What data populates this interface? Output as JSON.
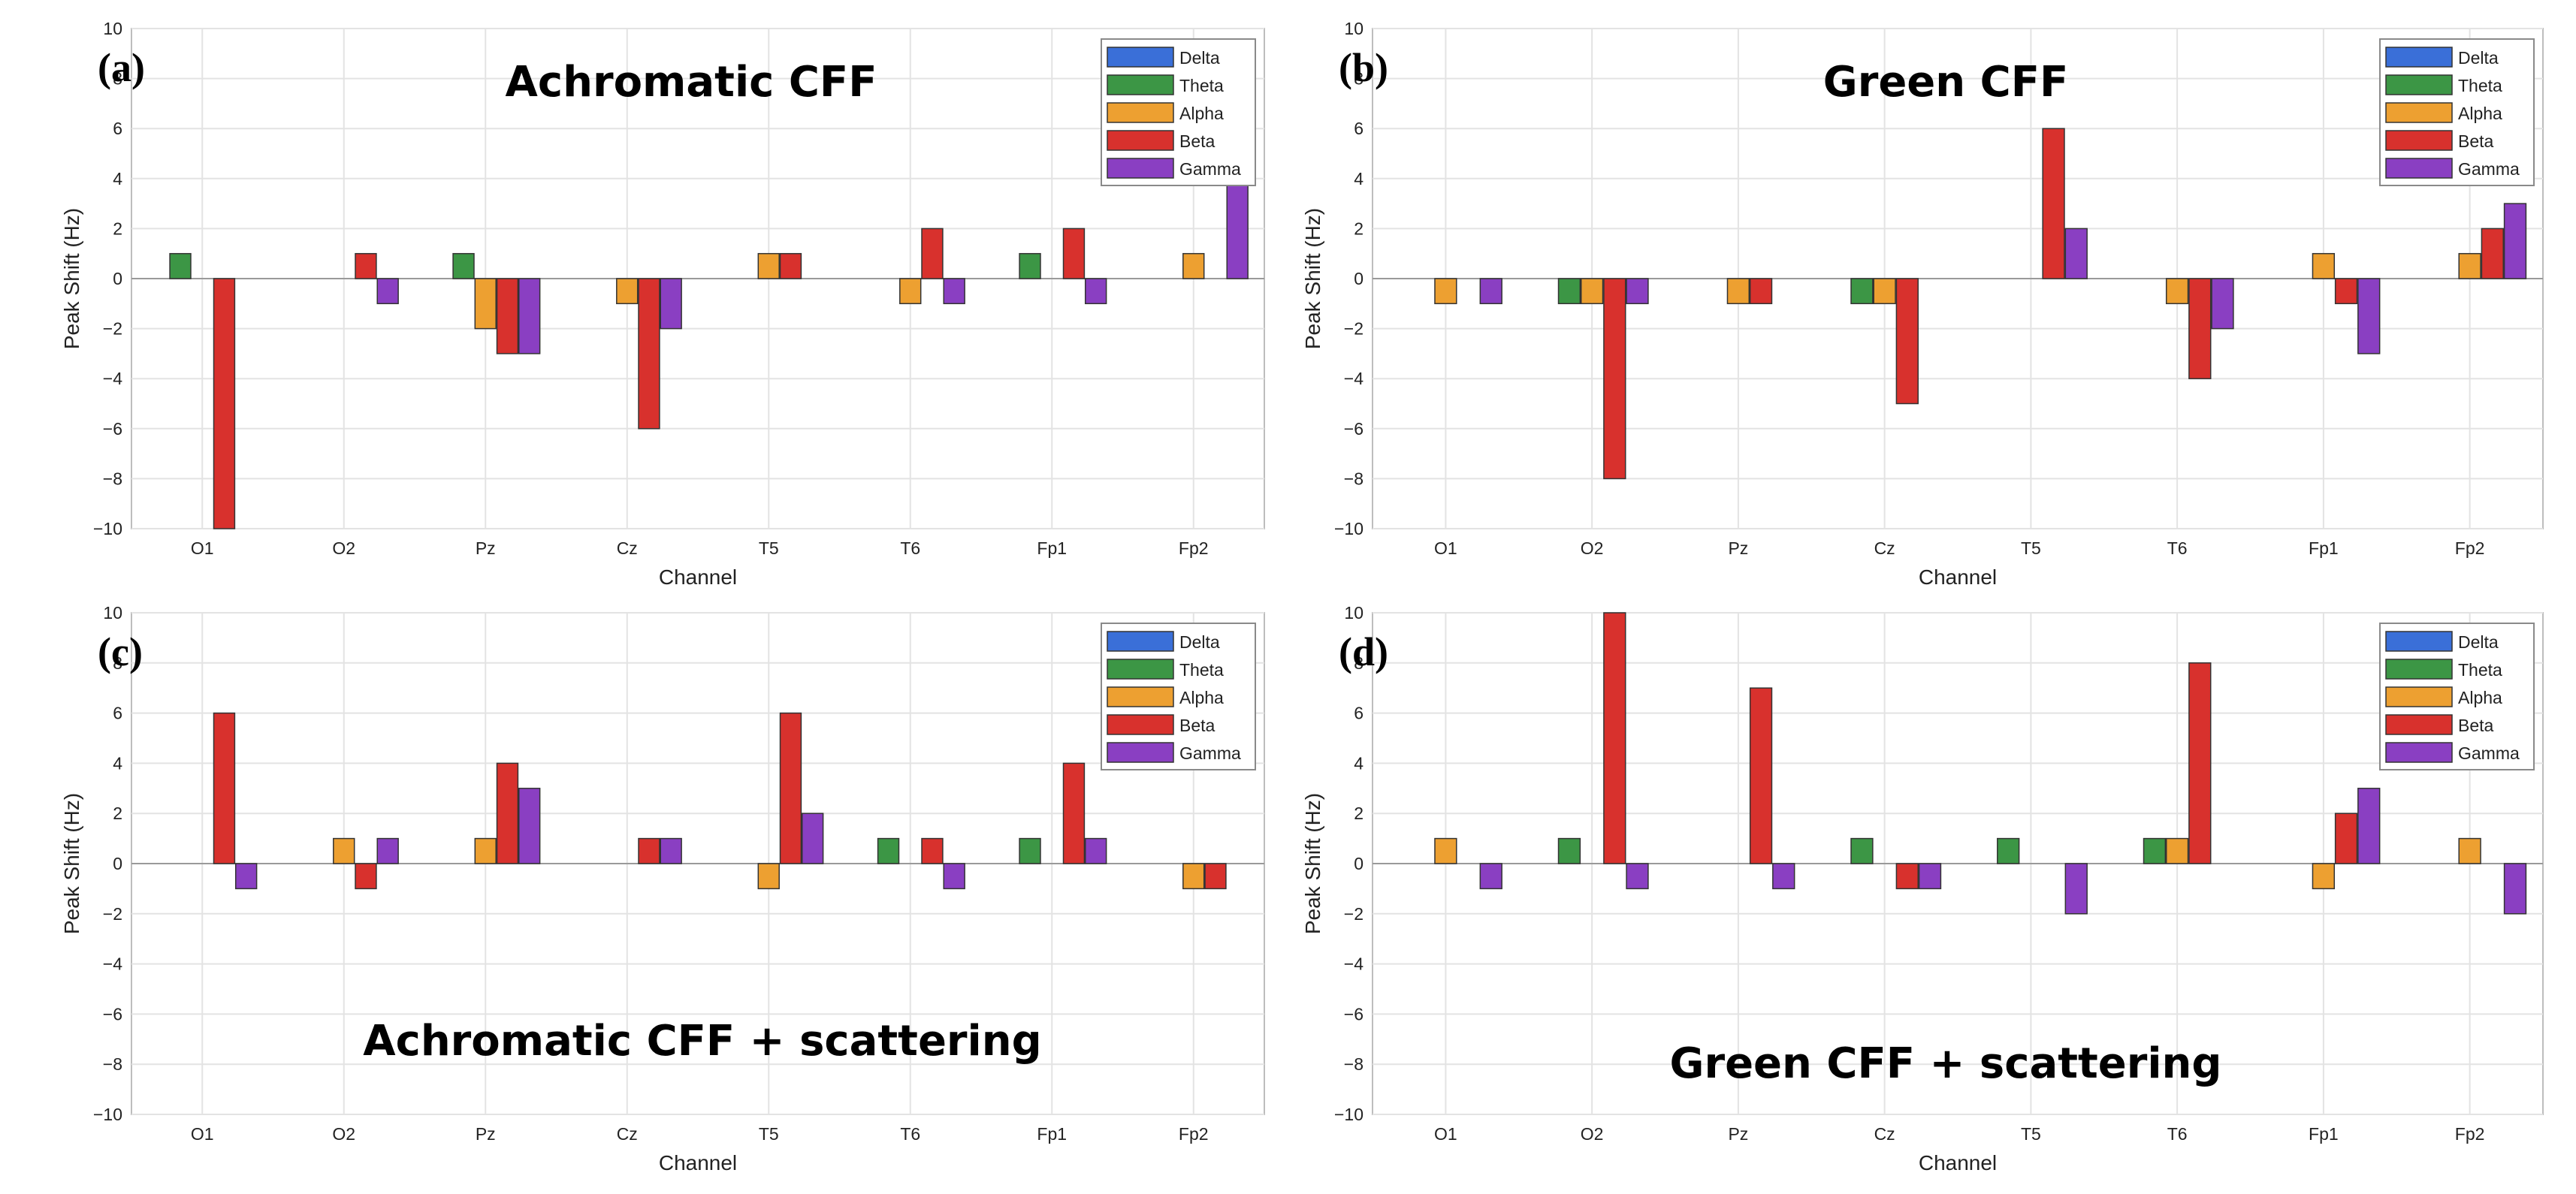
{
  "figure": {
    "legend": {
      "entries": [
        "Delta",
        "Theta",
        "Alpha",
        "Beta",
        "Gamma"
      ],
      "colors": [
        "#3a6fd8",
        "#3c9645",
        "#eda031",
        "#d8312d",
        "#8a3fc2"
      ]
    }
  },
  "chart_data": [
    {
      "type": "bar",
      "panel": "(a)",
      "title": "Achromatic CFF",
      "xlabel": "Channel",
      "ylabel": "Peak Shift (Hz)",
      "ylim": [
        -10,
        10
      ],
      "yticks": [
        10,
        8,
        6,
        4,
        2,
        0,
        -2,
        -4,
        -6,
        -8,
        -10
      ],
      "grid": true,
      "legend_position": "top-right",
      "categories": [
        "O1",
        "O2",
        "Pz",
        "Cz",
        "T5",
        "T6",
        "Fp1",
        "Fp2"
      ],
      "series": [
        {
          "name": "Delta",
          "values": [
            0,
            0,
            0,
            0,
            0,
            0,
            0,
            0
          ]
        },
        {
          "name": "Theta",
          "values": [
            1,
            0,
            1,
            0,
            0,
            0,
            1,
            0
          ]
        },
        {
          "name": "Alpha",
          "values": [
            0,
            0,
            -2,
            -1,
            1,
            -1,
            0,
            1
          ]
        },
        {
          "name": "Beta",
          "values": [
            -10,
            1,
            -3,
            -6,
            1,
            2,
            2,
            0
          ]
        },
        {
          "name": "Gamma",
          "values": [
            0,
            -1,
            -3,
            -2,
            0,
            -1,
            -1,
            4
          ]
        }
      ]
    },
    {
      "type": "bar",
      "panel": "(b)",
      "title": "Green CFF",
      "xlabel": "Channel",
      "ylabel": "Peak Shift (Hz)",
      "ylim": [
        -10,
        10
      ],
      "yticks": [
        10,
        8,
        6,
        4,
        2,
        0,
        -2,
        -4,
        -6,
        -8,
        -10
      ],
      "grid": true,
      "legend_position": "top-right",
      "categories": [
        "O1",
        "O2",
        "Pz",
        "Cz",
        "T5",
        "T6",
        "Fp1",
        "Fp2"
      ],
      "series": [
        {
          "name": "Delta",
          "values": [
            0,
            0,
            0,
            0,
            0,
            0,
            0,
            0
          ]
        },
        {
          "name": "Theta",
          "values": [
            0,
            -1,
            0,
            -1,
            0,
            0,
            0,
            0
          ]
        },
        {
          "name": "Alpha",
          "values": [
            -1,
            -1,
            -1,
            -1,
            0,
            -1,
            1,
            1
          ]
        },
        {
          "name": "Beta",
          "values": [
            0,
            -8,
            -1,
            -5,
            6,
            -4,
            -1,
            2
          ]
        },
        {
          "name": "Gamma",
          "values": [
            -1,
            -1,
            0,
            0,
            2,
            -2,
            -3,
            3
          ]
        }
      ]
    },
    {
      "type": "bar",
      "panel": "(c)",
      "title": "Achromatic CFF + scattering",
      "xlabel": "Channel",
      "ylabel": "Peak Shift (Hz)",
      "ylim": [
        -10,
        10
      ],
      "yticks": [
        10,
        8,
        6,
        4,
        2,
        0,
        -2,
        -4,
        -6,
        -8,
        -10
      ],
      "grid": true,
      "legend_position": "top-right",
      "categories": [
        "O1",
        "O2",
        "Pz",
        "Cz",
        "T5",
        "T6",
        "Fp1",
        "Fp2"
      ],
      "series": [
        {
          "name": "Delta",
          "values": [
            0,
            0,
            0,
            0,
            0,
            0,
            0,
            0
          ]
        },
        {
          "name": "Theta",
          "values": [
            0,
            0,
            0,
            0,
            0,
            1,
            1,
            0
          ]
        },
        {
          "name": "Alpha",
          "values": [
            0,
            1,
            1,
            0,
            -1,
            0,
            0,
            -1
          ]
        },
        {
          "name": "Beta",
          "values": [
            6,
            -1,
            4,
            1,
            6,
            1,
            4,
            -1
          ]
        },
        {
          "name": "Gamma",
          "values": [
            -1,
            1,
            3,
            1,
            2,
            -1,
            1,
            0
          ]
        }
      ]
    },
    {
      "type": "bar",
      "panel": "(d)",
      "title": "Green CFF + scattering",
      "xlabel": "Channel",
      "ylabel": "Peak Shift (Hz)",
      "ylim": [
        -10,
        10
      ],
      "yticks": [
        10,
        8,
        6,
        4,
        2,
        0,
        -2,
        -4,
        -6,
        -8,
        -10
      ],
      "grid": true,
      "legend_position": "top-right",
      "categories": [
        "O1",
        "O2",
        "Pz",
        "Cz",
        "T5",
        "T6",
        "Fp1",
        "Fp2"
      ],
      "series": [
        {
          "name": "Delta",
          "values": [
            0,
            0,
            0,
            0,
            0,
            0,
            0,
            0
          ]
        },
        {
          "name": "Theta",
          "values": [
            0,
            1,
            0,
            1,
            1,
            1,
            0,
            0
          ]
        },
        {
          "name": "Alpha",
          "values": [
            1,
            0,
            0,
            0,
            0,
            1,
            -1,
            1
          ]
        },
        {
          "name": "Beta",
          "values": [
            0,
            10,
            7,
            -1,
            0,
            8,
            2,
            0
          ]
        },
        {
          "name": "Gamma",
          "values": [
            -1,
            -1,
            -1,
            -1,
            -2,
            0,
            3,
            -2
          ]
        }
      ]
    }
  ]
}
